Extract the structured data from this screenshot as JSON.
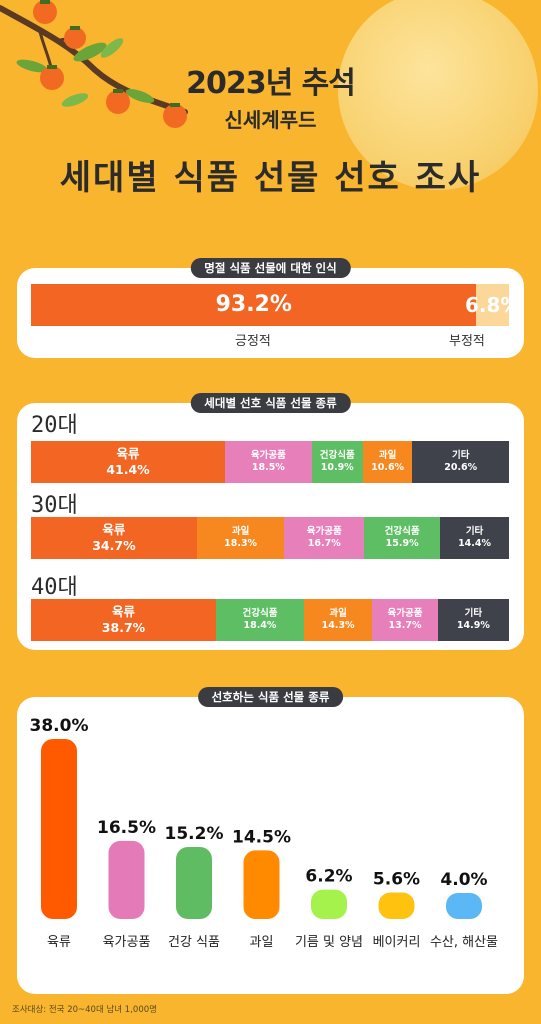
{
  "header": {
    "title": "2023년 추석",
    "brand": "신세계푸드",
    "headline": "세대별 식품 선물 선호 조사"
  },
  "perception": {
    "title": "명절 식품 선물에 대한 인식",
    "positive_label": "긍정적",
    "positive_value": "93.2%",
    "negative_label": "부정적",
    "negative_value": "6.8%"
  },
  "generation": {
    "title": "세대별 선호 식품 선물 종류",
    "groups": [
      {
        "age": "20대",
        "segments": [
          {
            "name": "육류",
            "value": "41.4%",
            "color": "#F26522"
          },
          {
            "name": "육가공품",
            "value": "18.5%",
            "color": "#E77FBB"
          },
          {
            "name": "건강식품",
            "value": "10.9%",
            "color": "#5DBE63"
          },
          {
            "name": "과일",
            "value": "10.6%",
            "color": "#F6881F"
          },
          {
            "name": "기타",
            "value": "20.6%",
            "color": "#3F424A"
          }
        ]
      },
      {
        "age": "30대",
        "segments": [
          {
            "name": "육류",
            "value": "34.7%",
            "color": "#F26522"
          },
          {
            "name": "과일",
            "value": "18.3%",
            "color": "#F6881F"
          },
          {
            "name": "육가공품",
            "value": "16.7%",
            "color": "#E77FBB"
          },
          {
            "name": "건강식품",
            "value": "15.9%",
            "color": "#5DBE63"
          },
          {
            "name": "기타",
            "value": "14.4%",
            "color": "#3F424A"
          }
        ]
      },
      {
        "age": "40대",
        "segments": [
          {
            "name": "육류",
            "value": "38.7%",
            "color": "#F26522"
          },
          {
            "name": "건강식품",
            "value": "18.4%",
            "color": "#5DBE63"
          },
          {
            "name": "과일",
            "value": "14.3%",
            "color": "#F6881F"
          },
          {
            "name": "육가공품",
            "value": "13.7%",
            "color": "#E77FBB"
          },
          {
            "name": "기타",
            "value": "14.9%",
            "color": "#3F424A"
          }
        ]
      }
    ]
  },
  "preferred": {
    "title": "선호하는 식품 선물 종류"
  },
  "chart_data": [
    {
      "type": "bar",
      "orientation": "horizontal-stacked",
      "title": "명절 식품 선물에 대한 인식",
      "categories": [
        "긍정적",
        "부정적"
      ],
      "values": [
        93.2,
        6.8
      ],
      "colors": [
        "#F26522",
        "#FBD79A"
      ]
    },
    {
      "type": "bar",
      "orientation": "horizontal-stacked",
      "title": "세대별 선호 식품 선물 종류",
      "categories": [
        "20대",
        "30대",
        "40대"
      ],
      "series": [
        {
          "name": "육류",
          "values": [
            41.4,
            34.7,
            38.7
          ]
        },
        {
          "name": "육가공품",
          "values": [
            18.5,
            16.7,
            13.7
          ]
        },
        {
          "name": "건강식품",
          "values": [
            10.9,
            15.9,
            18.4
          ]
        },
        {
          "name": "과일",
          "values": [
            10.6,
            18.3,
            14.3
          ]
        },
        {
          "name": "기타",
          "values": [
            20.6,
            14.4,
            14.9
          ]
        }
      ]
    },
    {
      "type": "bar",
      "title": "선호하는 식품 선물 종류",
      "categories": [
        "육류",
        "육가공품",
        "건강 식품",
        "과일",
        "기름 및 양념",
        "베이커리",
        "수산, 해산물"
      ],
      "values": [
        38.0,
        16.5,
        15.2,
        14.5,
        6.2,
        5.6,
        4.0
      ],
      "value_labels": [
        "38.0%",
        "16.5%",
        "15.2%",
        "14.5%",
        "6.2%",
        "5.6%",
        "4.0%"
      ],
      "colors": [
        "#FF5A00",
        "#E47AB7",
        "#5FBC62",
        "#FF8A00",
        "#A6F24D",
        "#FFC20E",
        "#5BB8F5"
      ],
      "ylim": [
        0,
        38.0
      ]
    }
  ],
  "footnote": "조사대상: 전국 20~40대 남녀 1,000명"
}
